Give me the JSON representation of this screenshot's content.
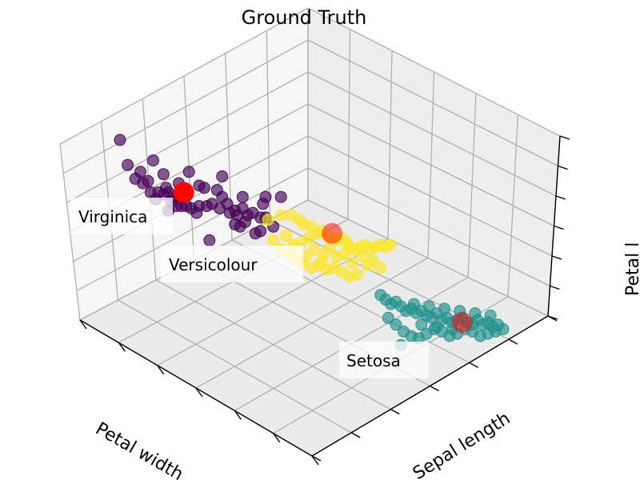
{
  "chart_data": {
    "type": "scatter",
    "projection": "3d",
    "title": "Ground Truth",
    "xlabel": "Petal width",
    "ylabel": "Sepal length",
    "zlabel": "Petal l",
    "grid": true,
    "legend": "none",
    "annotations": [
      {
        "text": "Virginica"
      },
      {
        "text": "Versicolour"
      },
      {
        "text": "Setosa"
      }
    ],
    "series": [
      {
        "color": "#440154",
        "points": [
          [
            -0.05,
            0.78
          ],
          [
            0.01,
            0.61
          ],
          [
            0.03,
            0.64
          ],
          [
            0.04,
            0.59
          ],
          [
            0.06,
            0.6
          ],
          [
            0.07,
            0.55
          ],
          [
            0.09,
            0.52
          ],
          [
            0.1,
            0.55
          ],
          [
            0.12,
            0.54
          ],
          [
            0.13,
            0.57
          ],
          [
            0.14,
            0.55
          ],
          [
            0.15,
            0.51
          ],
          [
            0.16,
            0.53
          ],
          [
            0.14,
            0.47
          ],
          [
            0.17,
            0.49
          ],
          [
            0.19,
            0.49
          ],
          [
            0.21,
            0.49
          ],
          [
            0.23,
            0.48
          ],
          [
            0.25,
            0.46
          ],
          [
            0.26,
            0.49
          ],
          [
            0.29,
            0.49
          ],
          [
            0.31,
            0.5
          ],
          [
            0.33,
            0.56
          ],
          [
            0.35,
            0.53
          ],
          [
            0.34,
            0.48
          ],
          [
            0.37,
            0.5
          ],
          [
            0.38,
            0.46
          ],
          [
            0.4,
            0.47
          ],
          [
            0.41,
            0.45
          ],
          [
            0.43,
            0.48
          ],
          [
            0.43,
            0.53
          ],
          [
            0.45,
            0.45
          ],
          [
            0.47,
            0.46
          ],
          [
            0.5,
            0.44
          ],
          [
            0.51,
            0.5
          ],
          [
            0.52,
            0.53
          ],
          [
            0.3,
            0.34
          ],
          [
            0.4,
            0.41
          ],
          [
            0.48,
            0.37
          ],
          [
            0.22,
            0.64
          ],
          [
            0.2,
            0.56
          ],
          [
            0.26,
            0.58
          ],
          [
            0.35,
            0.62
          ],
          [
            0.42,
            0.4
          ],
          [
            0.52,
            0.44
          ],
          [
            0.58,
            0.53
          ],
          [
            0.5,
            0.38
          ],
          [
            0.55,
            0.4
          ],
          [
            -0.02,
            0.67
          ],
          [
            0.08,
            0.69
          ],
          [
            0.12,
            0.63
          ],
          [
            0.18,
            0.59
          ],
          [
            0.28,
            0.57
          ],
          [
            0.44,
            0.42
          ]
        ]
      },
      {
        "color": "#fde725",
        "points": [
          [
            0.53,
            0.43
          ],
          [
            0.58,
            0.45
          ],
          [
            0.62,
            0.45
          ],
          [
            0.65,
            0.43
          ],
          [
            0.67,
            0.41
          ],
          [
            0.7,
            0.4
          ],
          [
            0.72,
            0.37
          ],
          [
            0.74,
            0.38
          ],
          [
            0.76,
            0.36
          ],
          [
            0.78,
            0.35
          ],
          [
            0.8,
            0.34
          ],
          [
            0.82,
            0.35
          ],
          [
            0.84,
            0.33
          ],
          [
            0.85,
            0.31
          ],
          [
            0.87,
            0.3
          ],
          [
            0.89,
            0.31
          ],
          [
            0.91,
            0.32
          ],
          [
            0.93,
            0.3
          ],
          [
            0.95,
            0.31
          ],
          [
            0.97,
            0.32
          ],
          [
            0.99,
            0.31
          ],
          [
            1.01,
            0.32
          ],
          [
            0.55,
            0.34
          ],
          [
            0.58,
            0.3
          ],
          [
            0.61,
            0.28
          ],
          [
            0.63,
            0.26
          ],
          [
            0.66,
            0.24
          ],
          [
            0.7,
            0.22
          ],
          [
            0.73,
            0.23
          ],
          [
            0.76,
            0.21
          ],
          [
            0.79,
            0.22
          ],
          [
            0.82,
            0.2
          ],
          [
            0.85,
            0.18
          ],
          [
            0.88,
            0.19
          ],
          [
            0.6,
            0.36
          ],
          [
            0.66,
            0.33
          ],
          [
            0.71,
            0.3
          ],
          [
            0.75,
            0.28
          ],
          [
            0.8,
            0.27
          ],
          [
            0.86,
            0.24
          ],
          [
            0.92,
            0.23
          ],
          [
            0.97,
            0.22
          ],
          [
            0.68,
            0.27
          ],
          [
            0.74,
            0.25
          ],
          [
            0.83,
            0.28
          ],
          [
            0.9,
            0.27
          ],
          [
            0.94,
            0.25
          ],
          [
            0.63,
            0.32
          ],
          [
            0.69,
            0.35
          ],
          [
            0.77,
            0.31
          ]
        ]
      },
      {
        "color": "#21918c",
        "points": [
          [
            0.97,
            0.1
          ],
          [
            0.99,
            0.08
          ],
          [
            1.01,
            0.06
          ],
          [
            1.03,
            0.07
          ],
          [
            1.05,
            0.05
          ],
          [
            1.07,
            0.03
          ],
          [
            1.09,
            0.04
          ],
          [
            1.11,
            0.02
          ],
          [
            1.13,
            0.03
          ],
          [
            1.15,
            0.01
          ],
          [
            1.17,
            0.0
          ],
          [
            1.19,
            0.02
          ],
          [
            1.21,
            -0.01
          ],
          [
            1.23,
            0.0
          ],
          [
            1.25,
            -0.02
          ],
          [
            1.27,
            -0.01
          ],
          [
            1.29,
            0.0
          ],
          [
            1.31,
            -0.02
          ],
          [
            1.33,
            -0.03
          ],
          [
            1.35,
            -0.01
          ],
          [
            1.37,
            -0.03
          ],
          [
            1.39,
            -0.02
          ],
          [
            1.41,
            -0.04
          ],
          [
            1.43,
            -0.03
          ],
          [
            1.0,
            0.0
          ],
          [
            1.03,
            -0.03
          ],
          [
            1.06,
            -0.06
          ],
          [
            1.09,
            -0.08
          ],
          [
            1.12,
            -0.09
          ],
          [
            1.15,
            -0.07
          ],
          [
            1.18,
            -0.05
          ],
          [
            1.21,
            -0.06
          ],
          [
            1.24,
            -0.08
          ],
          [
            1.27,
            -0.07
          ],
          [
            1.3,
            -0.05
          ],
          [
            1.33,
            -0.06
          ],
          [
            1.36,
            -0.08
          ],
          [
            1.39,
            -0.07
          ],
          [
            1.42,
            -0.06
          ],
          [
            1.05,
            -0.12
          ],
          [
            1.1,
            0.06
          ],
          [
            1.16,
            0.05
          ],
          [
            1.22,
            0.04
          ],
          [
            1.28,
            0.03
          ],
          [
            1.34,
            0.02
          ],
          [
            1.4,
            0.01
          ],
          [
            1.45,
            -0.05
          ],
          [
            1.13,
            -0.03
          ],
          [
            1.19,
            -0.04
          ],
          [
            1.25,
            -0.05
          ]
        ]
      }
    ],
    "centroids": [
      {
        "color": "#ff0000",
        "point": [
          0.2,
          0.55
        ]
      },
      {
        "color": "#ff0000",
        "point": [
          0.78,
          0.37
        ]
      },
      {
        "color": "#ff0000",
        "point": [
          1.29,
          -0.02
        ]
      }
    ]
  }
}
